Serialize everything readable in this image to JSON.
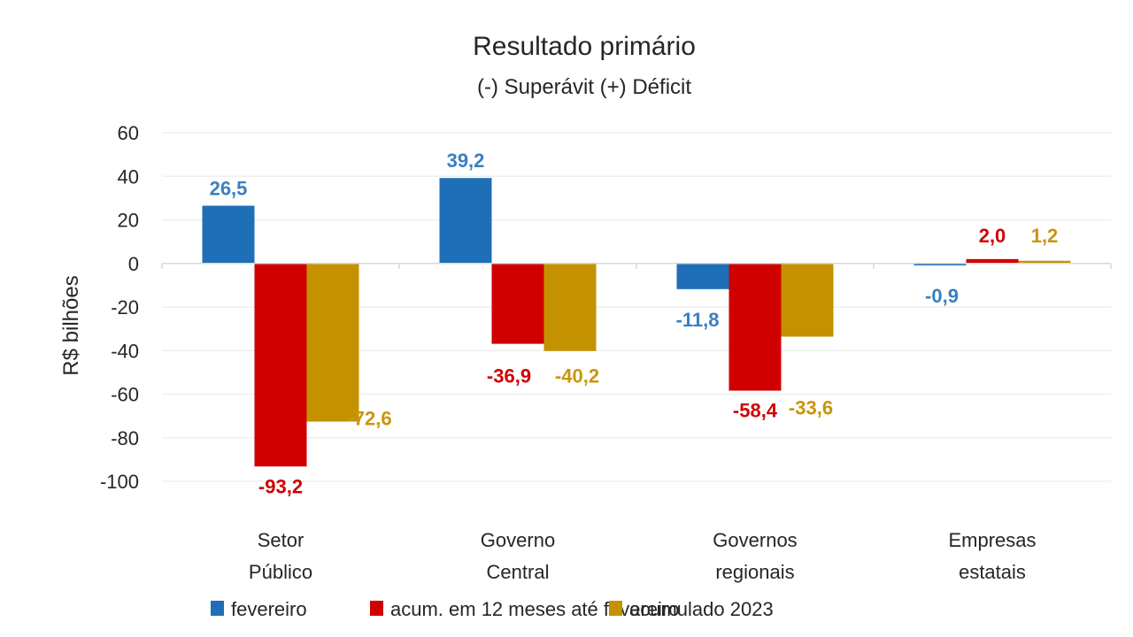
{
  "chart_data": {
    "type": "bar",
    "title": "Resultado primário",
    "subtitle": "(-) Superávit  (+) Déficit",
    "xlabel": "",
    "ylabel": "R$ bilhões",
    "ylim": [
      -100,
      60
    ],
    "yticks": [
      60,
      40,
      20,
      0,
      -20,
      -40,
      -60,
      -80,
      -100
    ],
    "grid": true,
    "legend_position": "bottom",
    "categories": [
      [
        "Setor",
        "Público"
      ],
      [
        "Governo",
        "Central"
      ],
      [
        "Governos",
        "regionais"
      ],
      [
        "Empresas",
        "estatais"
      ]
    ],
    "series": [
      {
        "name": "fevereiro",
        "color": "#1f6fb8",
        "label_color": "#3a7fc1",
        "values": [
          26.5,
          39.2,
          -11.8,
          -0.9
        ],
        "labels": [
          "26,5",
          "39,2",
          "-11,8",
          "-0,9"
        ]
      },
      {
        "name": "acum. em 12 meses até fevereiro",
        "color": "#d00000",
        "label_color": "#d00000",
        "values": [
          -93.2,
          -36.9,
          -58.4,
          2.0
        ],
        "labels": [
          "-93,2",
          "-36,9",
          "-58,4",
          "2,0"
        ]
      },
      {
        "name": "acumulado 2023",
        "color": "#c49200",
        "label_color": "#c9960a",
        "values": [
          -72.6,
          -40.2,
          -33.6,
          1.2
        ],
        "labels": [
          "-72,6",
          "-40,2",
          "-33,6",
          "1,2"
        ]
      }
    ]
  }
}
